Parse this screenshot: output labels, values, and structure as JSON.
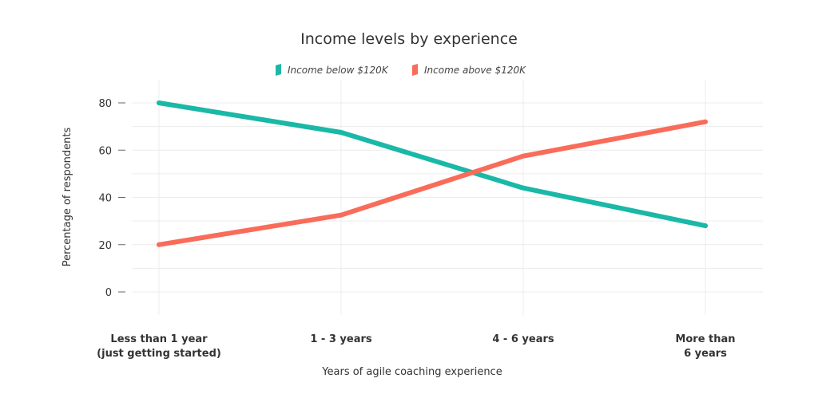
{
  "chart_data": {
    "type": "line",
    "title": "Income levels by experience",
    "xlabel": "Years of agile coaching experience",
    "ylabel": "Percentage of respondents",
    "categories": [
      [
        "Less than 1 year",
        "(just getting started)"
      ],
      [
        "1 - 3 years"
      ],
      [
        "4 - 6 years"
      ],
      [
        "More than",
        "6 years"
      ]
    ],
    "series": [
      {
        "name": "Income below $120K",
        "color": "#1ab8a6",
        "values": [
          80,
          67.5,
          44,
          28
        ]
      },
      {
        "name": "Income above $120K",
        "color": "#f96c5a",
        "values": [
          20,
          32.5,
          57.5,
          72
        ]
      }
    ],
    "ylim": [
      0,
      90
    ],
    "yticks": [
      0,
      20,
      40,
      60,
      80
    ],
    "grid": true,
    "legend_position": "top-center"
  }
}
